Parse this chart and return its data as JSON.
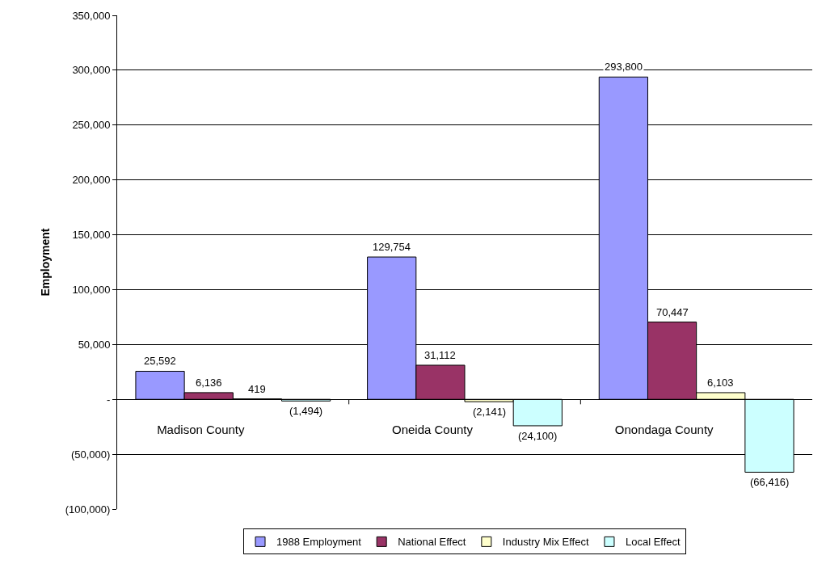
{
  "chart_data": {
    "type": "bar",
    "ylabel": "Employment",
    "categories": [
      "Madison County",
      "Oneida County",
      "Onondaga County"
    ],
    "series": [
      {
        "name": "1988 Employment",
        "color": "#9999ff",
        "values": [
          25592,
          129754,
          293800
        ],
        "value_labels": [
          "25,592",
          "129,754",
          "293,800"
        ]
      },
      {
        "name": "National Effect",
        "color": "#993366",
        "values": [
          6136,
          31112,
          70447
        ],
        "value_labels": [
          "6,136",
          "31,112",
          "70,447"
        ]
      },
      {
        "name": "Industry Mix Effect",
        "color": "#ffffcc",
        "values": [
          419,
          -2141,
          6103
        ],
        "value_labels": [
          "419",
          "(2,141)",
          "6,103"
        ]
      },
      {
        "name": "Local Effect",
        "color": "#ccffff",
        "values": [
          -1494,
          -24100,
          -66416
        ],
        "value_labels": [
          "(1,494)",
          "(24,100)",
          "(66,416)"
        ]
      }
    ],
    "ylim": [
      -100000,
      350000
    ],
    "yticks": [
      {
        "value": -100000,
        "label": "(100,000)"
      },
      {
        "value": -50000,
        "label": "(50,000)"
      },
      {
        "value": 0,
        "label": "-"
      },
      {
        "value": 50000,
        "label": "50,000"
      },
      {
        "value": 100000,
        "label": "100,000"
      },
      {
        "value": 150000,
        "label": "150,000"
      },
      {
        "value": 200000,
        "label": "200,000"
      },
      {
        "value": 250000,
        "label": "250,000"
      },
      {
        "value": 300000,
        "label": "300,000"
      },
      {
        "value": 350000,
        "label": "350,000"
      }
    ],
    "grid": "y",
    "legend": "bottom"
  }
}
